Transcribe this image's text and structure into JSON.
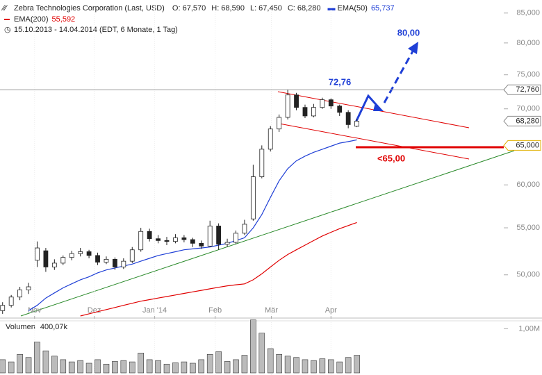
{
  "chart_data": {
    "type": "candlestick",
    "title": "Zebra Technologies Corporation (Last, USD)",
    "ohlc_labels": [
      "O: 67,570",
      "H: 68,590",
      "L: 67,450",
      "C: 68,280"
    ],
    "period": "15.10.2013 - 14.04.2014 (EDT, 6 Monate, 1 Tag)",
    "log_scale": true,
    "ylim": [
      46000,
      86300
    ],
    "yticks": [
      {
        "value": 50000,
        "label": "50,000"
      },
      {
        "value": 55000,
        "label": "55,000"
      },
      {
        "value": 60000,
        "label": "60,000"
      },
      {
        "value": 65000,
        "label": "65,000"
      },
      {
        "value": 70000,
        "label": "70,000"
      },
      {
        "value": 75000,
        "label": "75,000"
      },
      {
        "value": 80000,
        "label": "80,000"
      },
      {
        "value": 85000,
        "label": "85,000"
      }
    ],
    "xlim": [
      -0.3,
      58
    ],
    "xticks": [
      {
        "value": 3.7,
        "label": "Nov"
      },
      {
        "value": 10.6,
        "label": "Dez"
      },
      {
        "value": 17.6,
        "label": "Jan '14"
      },
      {
        "value": 24.6,
        "label": "Feb"
      },
      {
        "value": 31.1,
        "label": "Mär"
      },
      {
        "value": 38.0,
        "label": "Apr"
      }
    ],
    "open": [
      46500,
      47000,
      47800,
      48500,
      51500,
      52500,
      50800,
      51200,
      51800,
      52200,
      52400,
      52000,
      51300,
      51600,
      50800,
      51400,
      52600,
      54600,
      53800,
      53600,
      53500,
      53900,
      53700,
      53300,
      53000,
      55200,
      53200,
      53400,
      54400,
      56000,
      61000,
      64500,
      67200,
      68800,
      72000,
      70200,
      69000,
      70200,
      71300,
      70400,
      69500,
      67570
    ],
    "high": [
      47300,
      48000,
      48800,
      49200,
      53500,
      52800,
      51600,
      52000,
      52500,
      52800,
      52600,
      52300,
      51900,
      51800,
      51700,
      52900,
      55000,
      54900,
      54200,
      54000,
      54300,
      54200,
      53900,
      53600,
      55800,
      55500,
      53800,
      54700,
      55900,
      62500,
      65000,
      67600,
      69200,
      72760,
      72300,
      70600,
      70700,
      71600,
      71500,
      70600,
      69800,
      68590
    ],
    "low": [
      46200,
      46800,
      47500,
      48100,
      50800,
      50300,
      50500,
      51000,
      51500,
      51900,
      51700,
      51000,
      51100,
      50500,
      50600,
      51200,
      52400,
      53500,
      53300,
      53100,
      53300,
      53400,
      52900,
      52700,
      52900,
      52600,
      52900,
      53200,
      54200,
      55800,
      60800,
      64200,
      66800,
      68500,
      69800,
      68700,
      68800,
      70000,
      70000,
      69000,
      67300,
      67450
    ],
    "close": [
      47000,
      47800,
      48500,
      48800,
      52800,
      50800,
      51200,
      51800,
      52200,
      52400,
      52000,
      51300,
      51600,
      50800,
      51400,
      52600,
      54600,
      53800,
      53600,
      53500,
      53900,
      53700,
      53300,
      53000,
      55200,
      53200,
      53400,
      54400,
      55400,
      61000,
      64500,
      67200,
      68800,
      72000,
      70200,
      69000,
      70200,
      71300,
      70400,
      69500,
      67800,
      68280
    ],
    "series": [
      {
        "name": "EMA(50)",
        "value_label": "65,737",
        "color": "#1f3fd6",
        "values": [
          null,
          null,
          null,
          46500,
          47000,
          47700,
          48200,
          48700,
          49100,
          49500,
          49800,
          50200,
          50500,
          50700,
          50900,
          51100,
          51400,
          51700,
          52000,
          52200,
          52400,
          52600,
          52700,
          52800,
          52900,
          53100,
          53300,
          53600,
          53900,
          55000,
          56500,
          58500,
          60500,
          62000,
          63000,
          63600,
          64100,
          64500,
          64900,
          65300,
          65500,
          65737
        ]
      },
      {
        "name": "EMA(200)",
        "value_label": "55,592",
        "color": "#e00000",
        "values": [
          null,
          null,
          null,
          null,
          null,
          null,
          null,
          null,
          null,
          46000,
          46200,
          46400,
          46600,
          46800,
          47000,
          47200,
          47400,
          47550,
          47700,
          47850,
          48000,
          48150,
          48300,
          48450,
          48600,
          48750,
          48900,
          49000,
          49090,
          49500,
          50100,
          50800,
          51500,
          52100,
          52600,
          53100,
          53600,
          54100,
          54500,
          54900,
          55250,
          55592
        ]
      }
    ],
    "price_markers": [
      {
        "value": 72760,
        "label": "72,760"
      },
      {
        "value": 68280,
        "label": "68,280"
      },
      {
        "value": 65000,
        "label": "65,000"
      }
    ],
    "annotations": [
      "72,76",
      "80,00",
      "<65,00"
    ],
    "volume": {
      "name": "Volumen",
      "value_label": "400,07k",
      "ylim": [
        0,
        1100000
      ],
      "yticks": [
        {
          "value": 1000000,
          "label": "1,00M"
        }
      ],
      "values": [
        300000,
        250000,
        420000,
        350000,
        700000,
        500000,
        380000,
        300000,
        250000,
        280000,
        220000,
        300000,
        200000,
        260000,
        280000,
        250000,
        450000,
        300000,
        280000,
        200000,
        230000,
        250000,
        220000,
        300000,
        420000,
        480000,
        260000,
        300000,
        400000,
        1200000,
        900000,
        550000,
        420000,
        380000,
        350000,
        300000,
        280000,
        320000,
        300000,
        250000,
        350000,
        400070
      ]
    }
  }
}
